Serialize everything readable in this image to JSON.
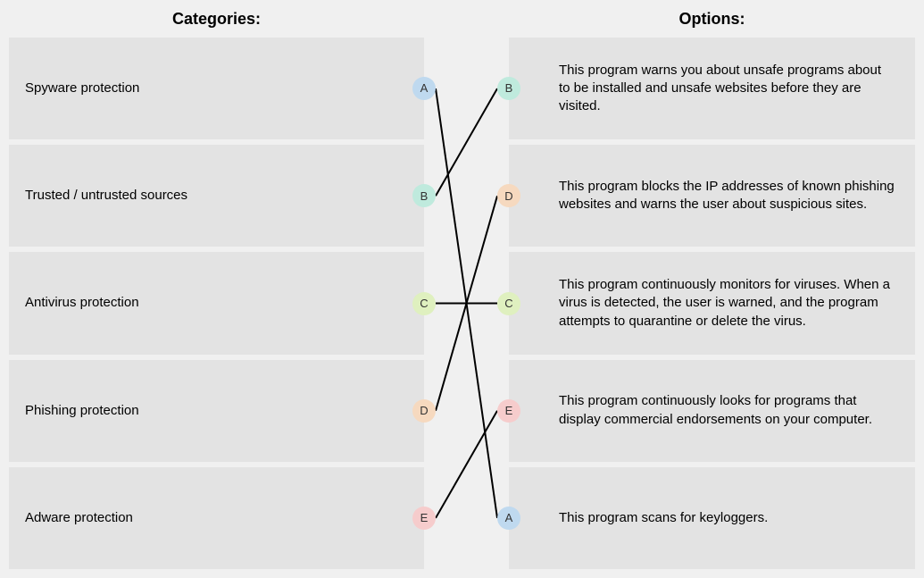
{
  "headers": {
    "left": "Categories:",
    "right": "Options:"
  },
  "layout": {
    "rowCount": 5,
    "badgeColors": {
      "A": "#bfd9ef",
      "B": "#bfeadd",
      "C": "#dff0bf",
      "D": "#f6d9bf",
      "E": "#f6cccc"
    },
    "lineColor": "#000000",
    "lineWidth": 2
  },
  "left": [
    {
      "label": "Spyware protection",
      "letter": "A"
    },
    {
      "label": "Trusted / untrusted sources",
      "letter": "B"
    },
    {
      "label": "Antivirus protection",
      "letter": "C"
    },
    {
      "label": "Phishing protection",
      "letter": "D"
    },
    {
      "label": "Adware protection",
      "letter": "E"
    }
  ],
  "right": [
    {
      "letter": "B",
      "text": "This program warns you about unsafe programs about to be installed and unsafe websites before they are visited."
    },
    {
      "letter": "D",
      "text": "This program blocks the IP addresses of known phishing websites and warns the user about suspicious sites."
    },
    {
      "letter": "C",
      "text": "This program continuously monitors for viruses. When a virus is detected, the user is warned, and the program attempts to quarantine or delete the virus."
    },
    {
      "letter": "E",
      "text": "This program continuously looks for programs that display commercial endorsements on your computer."
    },
    {
      "letter": "A",
      "text": "This program scans for keyloggers."
    }
  ],
  "connections": [
    {
      "fromLeftIndex": 0,
      "toRightIndex": 4
    },
    {
      "fromLeftIndex": 1,
      "toRightIndex": 0
    },
    {
      "fromLeftIndex": 2,
      "toRightIndex": 2
    },
    {
      "fromLeftIndex": 3,
      "toRightIndex": 1
    },
    {
      "fromLeftIndex": 4,
      "toRightIndex": 3
    }
  ]
}
